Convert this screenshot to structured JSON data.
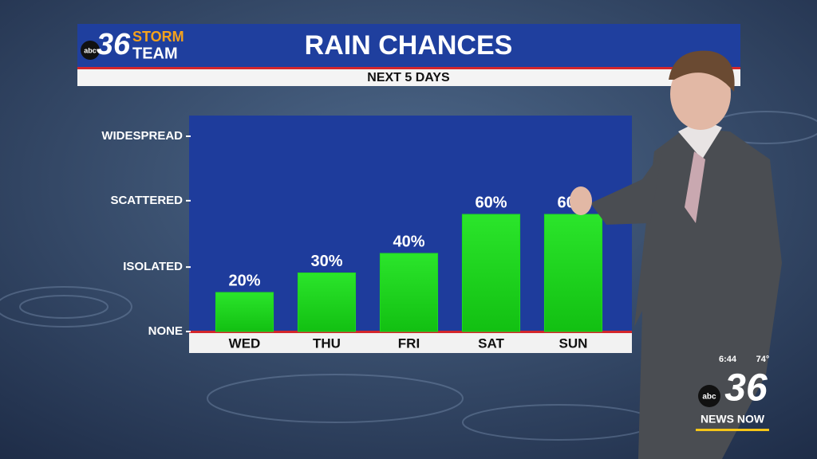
{
  "chart_data": {
    "type": "bar",
    "title": "RAIN CHANCES",
    "subtitle": "NEXT 5 DAYS",
    "categories": [
      "WED",
      "THU",
      "FRI",
      "SAT",
      "SUN"
    ],
    "values": [
      20,
      30,
      40,
      60,
      60
    ],
    "value_labels": [
      "20%",
      "30%",
      "40%",
      "60%",
      "60%"
    ],
    "color": "#1fd81f",
    "ylim": [
      0,
      110
    ],
    "yticks": [
      {
        "value": 0,
        "label": "NONE"
      },
      {
        "value": 33,
        "label": "ISOLATED"
      },
      {
        "value": 67,
        "label": "SCATTERED"
      },
      {
        "value": 100,
        "label": "WIDESPREAD"
      }
    ]
  },
  "branding": {
    "logo_network": "abc",
    "logo_number": "36",
    "logo_line1": "STORM",
    "logo_line2": "TEAM"
  },
  "bug": {
    "time": "6:44",
    "temperature": "74°",
    "network": "abc",
    "number": "36",
    "name": "NEWS NOW"
  }
}
